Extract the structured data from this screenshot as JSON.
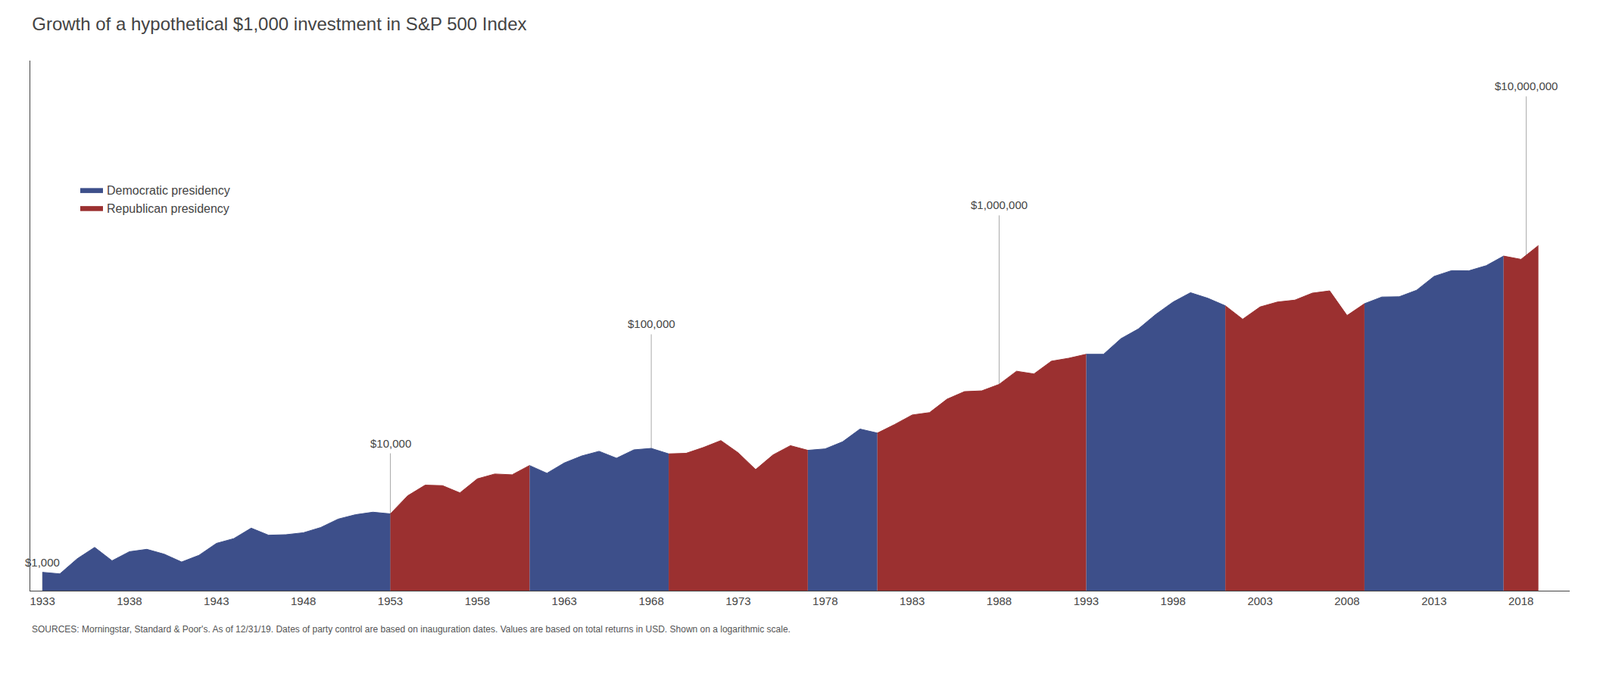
{
  "chart_data": {
    "type": "area",
    "title": "Growth of a hypothetical $1,000 investment in S&P 500 Index",
    "source": "SOURCES: Morningstar, Standard & Poor's. As of 12/31/19. Dates of party control are based on inauguration dates. Values are based on total returns in USD. Shown on a logarithmic scale.",
    "x": [
      1933,
      1934,
      1935,
      1936,
      1937,
      1938,
      1939,
      1940,
      1941,
      1942,
      1943,
      1944,
      1945,
      1946,
      1947,
      1948,
      1949,
      1950,
      1951,
      1952,
      1953,
      1954,
      1955,
      1956,
      1957,
      1958,
      1959,
      1960,
      1961,
      1962,
      1963,
      1964,
      1965,
      1966,
      1967,
      1968,
      1969,
      1970,
      1971,
      1972,
      1973,
      1974,
      1975,
      1976,
      1977,
      1978,
      1979,
      1980,
      1981,
      1982,
      1983,
      1984,
      1985,
      1986,
      1987,
      1988,
      1989,
      1990,
      1991,
      1992,
      1993,
      1994,
      1995,
      1996,
      1997,
      1998,
      1999,
      2000,
      2001,
      2002,
      2003,
      2004,
      2005,
      2006,
      2007,
      2008,
      2009,
      2010,
      2011,
      2012,
      2013,
      2014,
      2015,
      2016,
      2017,
      2018,
      2019
    ],
    "series": [
      {
        "name": "Democratic presidency",
        "color": "#3d4f8a",
        "values": [
          1000,
          970,
          1300,
          1620,
          1250,
          1490,
          1560,
          1420,
          1220,
          1390,
          1750,
          1920,
          2350,
          2050,
          2070,
          2150,
          2380,
          2800,
          3050,
          3200,
          3100,
          null,
          null,
          null,
          null,
          null,
          null,
          null,
          7900,
          6800,
          8300,
          9500,
          10400,
          9100,
          10700,
          11000,
          9900,
          null,
          null,
          null,
          null,
          null,
          null,
          null,
          10600,
          10900,
          12500,
          16000,
          14800,
          null,
          null,
          null,
          null,
          null,
          null,
          null,
          null,
          null,
          null,
          null,
          68000,
          68000,
          92000,
          111000,
          147000,
          187000,
          224000,
          201000,
          174000,
          null,
          null,
          null,
          null,
          null,
          null,
          null,
          181000,
          206000,
          207000,
          235000,
          307000,
          343000,
          342000,
          378000,
          455000,
          null,
          null
        ]
      },
      {
        "name": "Republican presidency",
        "color": "#9b3030",
        "values": [
          null,
          null,
          null,
          null,
          null,
          null,
          null,
          null,
          null,
          null,
          null,
          null,
          null,
          null,
          null,
          null,
          null,
          null,
          null,
          null,
          3100,
          4400,
          5400,
          5350,
          4650,
          6100,
          6700,
          6600,
          7900,
          null,
          null,
          null,
          null,
          null,
          null,
          null,
          9900,
          10000,
          11200,
          12800,
          10100,
          7300,
          9700,
          11600,
          10600,
          null,
          null,
          null,
          14800,
          17500,
          21000,
          22000,
          28500,
          33000,
          33500,
          38000,
          49000,
          46500,
          59500,
          63000,
          68000,
          null,
          null,
          null,
          null,
          null,
          null,
          null,
          174000,
          134000,
          170000,
          187000,
          194000,
          222000,
          232000,
          144000,
          181000,
          null,
          null,
          null,
          null,
          null,
          null,
          null,
          455000,
          427000,
          558000
        ]
      }
    ],
    "annotations": [
      {
        "text": "$1,000",
        "x": 1933.0,
        "y": 1000
      },
      {
        "text": "$10,000",
        "x": 1953.0,
        "y": 10000
      },
      {
        "text": "$100,000",
        "x": 1968.0,
        "y": 100000
      },
      {
        "text": "$1,000,000",
        "x": 1988.0,
        "y": 1000000
      },
      {
        "text": "$10,000,000",
        "x": 2018.3,
        "y": 10000000
      }
    ],
    "log": "y",
    "xlim": [
      1932.3,
      2020.8
    ],
    "ylim": [
      700,
      20000000
    ],
    "xticks": [
      1933,
      1938,
      1943,
      1948,
      1953,
      1958,
      1963,
      1968,
      1973,
      1978,
      1983,
      1988,
      1993,
      1998,
      2003,
      2008,
      2013,
      2018
    ],
    "yticks": [],
    "tick_labels": "x",
    "grid": false,
    "legend": "upper left"
  }
}
